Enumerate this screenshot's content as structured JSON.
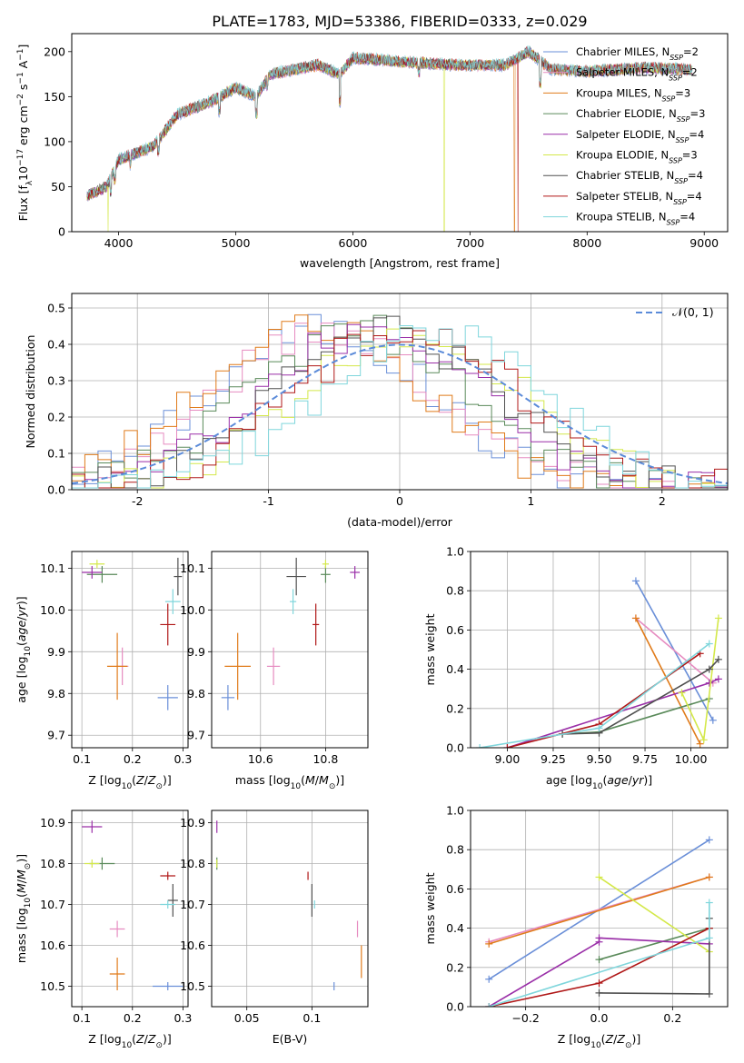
{
  "figure_title": "PLATE=1783, MJD=53386, FIBERID=0333, z=0.029",
  "colors": {
    "c0": "#6a8fd8",
    "c1": "#e68bc0",
    "c2": "#e07b1a",
    "c3": "#5a8a5a",
    "c4": "#9a2fa8",
    "c5": "#d4e84a",
    "c6": "#505050",
    "c7": "#b01818",
    "c8": "#7fd6dc",
    "gauss": "#5b8bd9"
  },
  "model_legend": [
    {
      "text": "Chabrier MILES, N",
      "sub": "SSP",
      "suffix": "=2"
    },
    {
      "text": "Salpeter MILES, N",
      "sub": "SSP",
      "suffix": "=2"
    },
    {
      "text": "Kroupa MILES, N",
      "sub": "SSP",
      "suffix": "=3"
    },
    {
      "text": "Chabrier ELODIE, N",
      "sub": "SSP",
      "suffix": "=3"
    },
    {
      "text": "Salpeter ELODIE, N",
      "sub": "SSP",
      "suffix": "=4"
    },
    {
      "text": "Kroupa ELODIE, N",
      "sub": "SSP",
      "suffix": "=3"
    },
    {
      "text": "Chabrier STELIB, N",
      "sub": "SSP",
      "suffix": "=4"
    },
    {
      "text": "Salpeter STELIB, N",
      "sub": "SSP",
      "suffix": "=4"
    },
    {
      "text": "Kroupa STELIB, N",
      "sub": "SSP",
      "suffix": "=4"
    }
  ],
  "chart_data": [
    {
      "id": "spectrum",
      "type": "line",
      "xlabel": "wavelength [Angstrom, rest frame]",
      "ylabel": "Flux [f",
      "ylabel_parts": {
        "a": "Flux [f",
        "lambda_sub": "λ",
        "b": "10",
        "exp1": "−17",
        "c": " erg cm",
        "exp2": "−2",
        "d": " s",
        "exp3": "−1",
        "e": " A",
        "exp4": "−1",
        "f": "]"
      },
      "xlim": [
        3600,
        9200
      ],
      "ylim": [
        0,
        220
      ],
      "xticks": [
        4000,
        5000,
        6000,
        7000,
        8000,
        9000
      ],
      "yticks": [
        0,
        50,
        100,
        150,
        200
      ],
      "wavelength_range": [
        3730,
        8900
      ],
      "profile": [
        [
          3730,
          40
        ],
        [
          3900,
          50
        ],
        [
          4000,
          80
        ],
        [
          4300,
          95
        ],
        [
          4500,
          130
        ],
        [
          4800,
          145
        ],
        [
          5000,
          160
        ],
        [
          5175,
          150
        ],
        [
          5300,
          175
        ],
        [
          5700,
          185
        ],
        [
          5890,
          175
        ],
        [
          6000,
          193
        ],
        [
          6500,
          188
        ],
        [
          6900,
          185
        ],
        [
          7300,
          185
        ],
        [
          7500,
          200
        ],
        [
          7700,
          180
        ],
        [
          8000,
          178
        ],
        [
          8500,
          182
        ],
        [
          8900,
          180
        ]
      ],
      "dropouts": [
        {
          "series": 5,
          "wavelength": 3910
        },
        {
          "series": 5,
          "wavelength": 6780
        },
        {
          "series": 2,
          "wavelength": 7380
        },
        {
          "series": 7,
          "wavelength": 7410
        }
      ]
    },
    {
      "id": "residuals",
      "type": "line",
      "xlabel": "(data-model)/error",
      "ylabel": "Normed distribution",
      "xlim": [
        -2.5,
        2.5
      ],
      "ylim": [
        0,
        0.54
      ],
      "xticks": [
        -2,
        -1,
        0,
        1,
        2
      ],
      "yticks": [
        0.0,
        0.1,
        0.2,
        0.3,
        0.4,
        0.5
      ],
      "bin_width": 0.1,
      "gauss_legend": "𝒩(0, 1)",
      "series_peak_centers": [
        -0.6,
        -0.55,
        -0.65,
        -0.3,
        -0.2,
        0.1,
        -0.1,
        0.05,
        0.25
      ]
    },
    {
      "id": "age_vs_Z",
      "type": "scatter",
      "xlabel": "Z [log",
      "xlabel_parts": {
        "a": "Z [log",
        "sub": "10",
        "b": "(Z/Z",
        "sub2": "⊙",
        "c": ")]"
      },
      "ylabel_parts": {
        "a": "age  [log",
        "sub": "10",
        "b": "(age/yr)]"
      },
      "xlim": [
        0.08,
        0.31
      ],
      "ylim": [
        9.67,
        10.14
      ],
      "xticks": [
        0.1,
        0.2,
        0.3
      ],
      "yticks": [
        9.7,
        9.8,
        9.9,
        10.0,
        10.1
      ],
      "points": [
        {
          "s": 0,
          "x": 0.27,
          "y": 9.79,
          "ex": 0.02,
          "ey": 0.03
        },
        {
          "s": 1,
          "x": 0.18,
          "y": 9.865,
          "ex": 0.012,
          "ey": 0.045
        },
        {
          "s": 2,
          "x": 0.17,
          "y": 9.865,
          "ex": 0.02,
          "ey": 0.08
        },
        {
          "s": 3,
          "x": 0.14,
          "y": 10.085,
          "ex": 0.03,
          "ey": 0.02
        },
        {
          "s": 4,
          "x": 0.12,
          "y": 10.09,
          "ex": 0.02,
          "ey": 0.015
        },
        {
          "s": 5,
          "x": 0.13,
          "y": 10.11,
          "ex": 0.015,
          "ey": 0.01
        },
        {
          "s": 6,
          "x": 0.29,
          "y": 10.08,
          "ex": 0.008,
          "ey": 0.045
        },
        {
          "s": 7,
          "x": 0.27,
          "y": 9.965,
          "ex": 0.015,
          "ey": 0.05
        },
        {
          "s": 8,
          "x": 0.28,
          "y": 10.02,
          "ex": 0.015,
          "ey": 0.03
        }
      ]
    },
    {
      "id": "age_vs_mass",
      "type": "scatter",
      "xlabel_parts": {
        "a": "mass [log",
        "sub": "10",
        "b": "(M/M",
        "sub2": "⊙",
        "c": ")]"
      },
      "xlim": [
        10.45,
        10.93
      ],
      "ylim": [
        9.67,
        10.14
      ],
      "xticks": [
        10.6,
        10.8
      ],
      "yticks": [
        9.7,
        9.8,
        9.9,
        10.0,
        10.1
      ],
      "points": [
        {
          "s": 0,
          "x": 10.5,
          "y": 9.79,
          "ex": 0.02,
          "ey": 0.03
        },
        {
          "s": 1,
          "x": 10.64,
          "y": 9.865,
          "ex": 0.02,
          "ey": 0.045
        },
        {
          "s": 2,
          "x": 10.53,
          "y": 9.865,
          "ex": 0.04,
          "ey": 0.08
        },
        {
          "s": 3,
          "x": 10.8,
          "y": 10.085,
          "ex": 0.015,
          "ey": 0.02
        },
        {
          "s": 4,
          "x": 10.89,
          "y": 10.09,
          "ex": 0.015,
          "ey": 0.015
        },
        {
          "s": 5,
          "x": 10.8,
          "y": 10.11,
          "ex": 0.01,
          "ey": 0.01
        },
        {
          "s": 6,
          "x": 10.71,
          "y": 10.08,
          "ex": 0.03,
          "ey": 0.045
        },
        {
          "s": 7,
          "x": 10.77,
          "y": 9.965,
          "ex": 0.01,
          "ey": 0.05
        },
        {
          "s": 8,
          "x": 10.7,
          "y": 10.02,
          "ex": 0.01,
          "ey": 0.03
        }
      ]
    },
    {
      "id": "mass_weight_vs_age",
      "type": "line",
      "xlabel_parts": {
        "a": "age  [log",
        "sub": "10",
        "b": "(age/yr)]"
      },
      "ylabel": "mass weight",
      "xlim": [
        8.8,
        10.2
      ],
      "ylim": [
        0,
        1
      ],
      "xticks": [
        9.0,
        9.25,
        9.5,
        9.75,
        10.0
      ],
      "xtick_labels": [
        "9.00",
        "9.25",
        "9.50",
        "9.75",
        "10.00"
      ],
      "yticks": [
        0,
        0.2,
        0.4,
        0.6,
        0.8,
        1.0
      ],
      "series": [
        {
          "s": 0,
          "x": [
            9.7,
            10.12
          ],
          "y": [
            0.85,
            0.14
          ]
        },
        {
          "s": 1,
          "x": [
            9.7,
            10.12
          ],
          "y": [
            0.66,
            0.33
          ]
        },
        {
          "s": 2,
          "x": [
            9.7,
            10.05
          ],
          "y": [
            0.66,
            0.02
          ]
        },
        {
          "s": 3,
          "x": [
            9.3,
            9.5,
            10.1
          ],
          "y": [
            0.07,
            0.08,
            0.25
          ]
        },
        {
          "s": 4,
          "x": [
            9.0,
            10.1,
            10.15
          ],
          "y": [
            0.0,
            0.33,
            0.35
          ]
        },
        {
          "s": 5,
          "x": [
            9.95,
            10.07,
            10.15
          ],
          "y": [
            0.28,
            0.04,
            0.66
          ]
        },
        {
          "s": 6,
          "x": [
            9.3,
            9.5,
            10.1,
            10.15
          ],
          "y": [
            0.07,
            0.075,
            0.4,
            0.45
          ]
        },
        {
          "s": 7,
          "x": [
            9.0,
            9.5,
            10.05
          ],
          "y": [
            0.0,
            0.12,
            0.48
          ]
        },
        {
          "s": 8,
          "x": [
            8.85,
            9.5,
            10.1
          ],
          "y": [
            0.0,
            0.1,
            0.53
          ]
        }
      ]
    },
    {
      "id": "mass_vs_Z",
      "type": "scatter",
      "xlabel_parts": {
        "a": "Z [log",
        "sub": "10",
        "b": "(Z/Z",
        "sub2": "⊙",
        "c": ")]"
      },
      "ylabel_parts": {
        "a": "mass [log",
        "sub": "10",
        "b": "(M/M",
        "sub2": "⊙",
        "c": ")]"
      },
      "xlim": [
        0.08,
        0.31
      ],
      "ylim": [
        10.45,
        10.93
      ],
      "xticks": [
        0.1,
        0.2,
        0.3
      ],
      "yticks": [
        10.5,
        10.6,
        10.7,
        10.8,
        10.9
      ],
      "points": [
        {
          "s": 0,
          "x": 0.27,
          "y": 10.5,
          "ex": 0.03,
          "ey": 0.01
        },
        {
          "s": 1,
          "x": 0.17,
          "y": 10.64,
          "ex": 0.015,
          "ey": 0.02
        },
        {
          "s": 2,
          "x": 0.17,
          "y": 10.53,
          "ex": 0.015,
          "ey": 0.04
        },
        {
          "s": 3,
          "x": 0.14,
          "y": 10.8,
          "ex": 0.025,
          "ey": 0.015
        },
        {
          "s": 4,
          "x": 0.12,
          "y": 10.89,
          "ex": 0.02,
          "ey": 0.015
        },
        {
          "s": 5,
          "x": 0.12,
          "y": 10.8,
          "ex": 0.015,
          "ey": 0.01
        },
        {
          "s": 6,
          "x": 0.28,
          "y": 10.71,
          "ex": 0.01,
          "ey": 0.04
        },
        {
          "s": 7,
          "x": 0.27,
          "y": 10.77,
          "ex": 0.015,
          "ey": 0.01
        },
        {
          "s": 8,
          "x": 0.27,
          "y": 10.7,
          "ex": 0.015,
          "ey": 0.01
        }
      ]
    },
    {
      "id": "mass_vs_EBV",
      "type": "scatter",
      "xlabel": "E(B-V)",
      "xlim": [
        0.023,
        0.143
      ],
      "ylim": [
        10.45,
        10.93
      ],
      "xticks": [
        0.05,
        0.1
      ],
      "yticks": [
        10.5,
        10.6,
        10.7,
        10.8,
        10.9
      ],
      "points": [
        {
          "s": 0,
          "x": 0.117,
          "y": 10.5,
          "ex": 0.0,
          "ey": 0.01
        },
        {
          "s": 1,
          "x": 0.135,
          "y": 10.64,
          "ex": 0.0,
          "ey": 0.02
        },
        {
          "s": 2,
          "x": 0.138,
          "y": 10.56,
          "ex": 0.0,
          "ey": 0.04
        },
        {
          "s": 3,
          "x": 0.027,
          "y": 10.8,
          "ex": 0.0,
          "ey": 0.015
        },
        {
          "s": 4,
          "x": 0.027,
          "y": 10.89,
          "ex": 0.0,
          "ey": 0.015
        },
        {
          "s": 5,
          "x": 0.027,
          "y": 10.8,
          "ex": 0.0,
          "ey": 0.01
        },
        {
          "s": 6,
          "x": 0.1,
          "y": 10.71,
          "ex": 0.0,
          "ey": 0.04
        },
        {
          "s": 7,
          "x": 0.097,
          "y": 10.77,
          "ex": 0.0,
          "ey": 0.01
        },
        {
          "s": 8,
          "x": 0.102,
          "y": 10.7,
          "ex": 0.0,
          "ey": 0.01
        }
      ]
    },
    {
      "id": "mass_weight_vs_Z",
      "type": "line",
      "xlabel_parts": {
        "a": "Z [log",
        "sub": "10",
        "b": "(Z/Z",
        "sub2": "⊙",
        "c": ")]"
      },
      "ylabel": "mass weight",
      "xlim": [
        -0.35,
        0.35
      ],
      "ylim": [
        0,
        1
      ],
      "xticks": [
        -0.2,
        0.0,
        0.2
      ],
      "xtick_labels": [
        "−0.2",
        "0.0",
        "0.2"
      ],
      "yticks": [
        0,
        0.2,
        0.4,
        0.6,
        0.8,
        1.0
      ],
      "series": [
        {
          "s": 0,
          "x": [
            -0.3,
            0.3
          ],
          "y": [
            0.14,
            0.85
          ]
        },
        {
          "s": 1,
          "x": [
            -0.3,
            0.3
          ],
          "y": [
            0.33,
            0.66
          ]
        },
        {
          "s": 2,
          "x": [
            -0.3,
            0.3
          ],
          "y": [
            0.32,
            0.66
          ]
        },
        {
          "s": 3,
          "x": [
            0.0,
            0.3
          ],
          "y": [
            0.24,
            0.4
          ]
        },
        {
          "s": 4,
          "x": [
            -0.3,
            0.0,
            0.0,
            0.3
          ],
          "y": [
            0.0,
            0.33,
            0.35,
            0.32
          ]
        },
        {
          "s": 5,
          "x": [
            0.0,
            0.3
          ],
          "y": [
            0.66,
            0.28
          ]
        },
        {
          "s": 6,
          "x": [
            0.0,
            0.3,
            0.3,
            0.3
          ],
          "y": [
            0.07,
            0.065,
            0.4,
            0.45
          ]
        },
        {
          "s": 7,
          "x": [
            -0.3,
            0.0,
            0.3
          ],
          "y": [
            0.0,
            0.12,
            0.4
          ]
        },
        {
          "s": 8,
          "x": [
            -0.3,
            0.3,
            0.3
          ],
          "y": [
            0.0,
            0.35,
            0.53
          ]
        }
      ]
    }
  ]
}
